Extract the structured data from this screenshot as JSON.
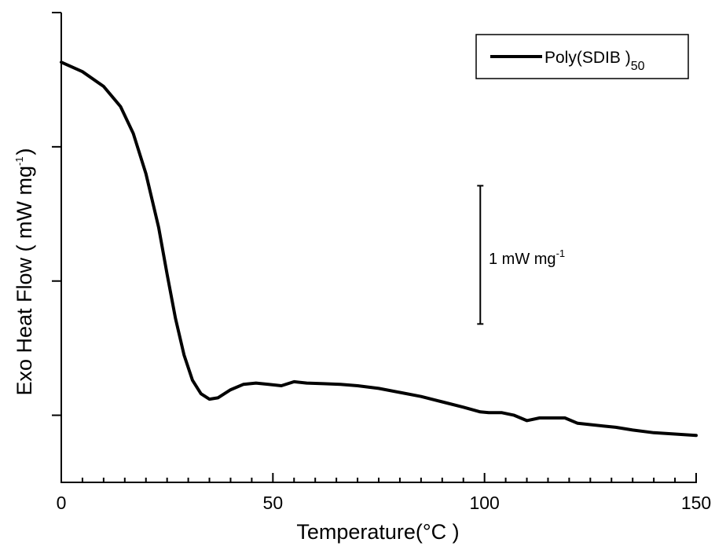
{
  "chart_data": {
    "type": "line",
    "xlabel": "Temperature(°C )",
    "ylabel": "Exo Heat Flow ( mW mg",
    "ylabel_sup": "-1",
    "ylabel_end": ")",
    "xlim": [
      0,
      150
    ],
    "ylim": [
      -0.5,
      3.0
    ],
    "x_ticks": [
      0,
      50,
      100,
      150
    ],
    "x_tick_labels": [
      "0",
      "50",
      "100",
      "150"
    ],
    "y_ticks": [
      0,
      1,
      2,
      3
    ],
    "y_tick_labels_shown": false,
    "grid": false,
    "legend_position": "top-right",
    "series": [
      {
        "name": "Poly(SDIB )",
        "name_subscript": "50",
        "color": "#000000",
        "x": [
          0,
          5,
          10,
          14,
          17,
          20,
          23,
          25,
          27,
          29,
          31,
          33,
          35,
          37,
          40,
          43,
          46,
          49,
          52,
          55,
          58,
          62,
          66,
          70,
          75,
          80,
          85,
          90,
          95,
          99,
          101,
          104,
          107,
          110,
          113,
          116,
          119,
          122,
          125,
          128,
          131,
          135,
          140,
          145,
          150
        ],
        "y": [
          2.63,
          2.56,
          2.45,
          2.3,
          2.1,
          1.8,
          1.4,
          1.05,
          0.72,
          0.45,
          0.26,
          0.16,
          0.12,
          0.13,
          0.19,
          0.23,
          0.24,
          0.23,
          0.22,
          0.25,
          0.24,
          0.235,
          0.23,
          0.22,
          0.2,
          0.17,
          0.14,
          0.1,
          0.06,
          0.025,
          0.02,
          0.02,
          0.0,
          -0.04,
          -0.02,
          -0.02,
          -0.02,
          -0.06,
          -0.07,
          -0.08,
          -0.09,
          -0.11,
          -0.13,
          -0.14,
          -0.15
        ]
      }
    ],
    "scale_bar": {
      "label": "1 mW mg",
      "label_sup": "-1",
      "x": 99,
      "y_bottom": 0.68,
      "y_top": 1.71
    }
  }
}
